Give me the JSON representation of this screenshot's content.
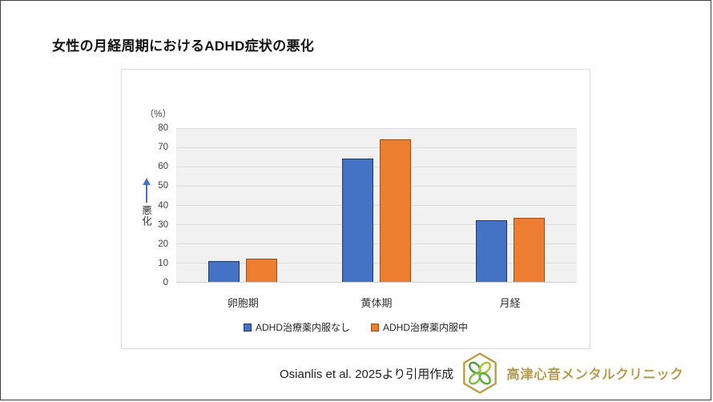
{
  "page": {
    "title": "女性の月経周期におけるADHD症状の悪化"
  },
  "colors": {
    "frame_border": "#3f3f3f",
    "panel_border": "#d9d9d9",
    "plot_background": "#f1f1f2",
    "gridline": "#dcdcdc",
    "axis_text": "#3f3f3f",
    "arrow_blue": "#4472c4",
    "clinic_gold": "#b79d4f",
    "logo_hexagon_gold": "#b89a3c",
    "logo_leaf_greens": [
      "#4e9b47",
      "#a8c83c",
      "#7fbf45",
      "#5fad3f"
    ]
  },
  "icons": {
    "worsening_arrow": "up-arrow-icon",
    "clinic_logo": "clover-hexagon-icon"
  },
  "chart_data": {
    "type": "bar",
    "title": "女性の月経周期におけるADHD症状の悪化",
    "unit_label": "（%）",
    "y_axis_annotation": "悪化",
    "categories": [
      "卵胞期",
      "黄体期",
      "月経"
    ],
    "series": [
      {
        "name": "ADHD治療薬内服なし",
        "values": [
          11,
          64,
          32
        ],
        "fill": "#4472c4",
        "border": "#1f3864"
      },
      {
        "name": "ADHD治療薬内服中",
        "values": [
          12,
          74,
          33.5
        ],
        "fill": "#ed7d31",
        "border": "#9c4e14"
      }
    ],
    "ylim": [
      0,
      80
    ],
    "y_ticks": [
      0,
      10,
      20,
      30,
      40,
      50,
      60,
      70,
      80
    ],
    "grid": true,
    "legend_position": "bottom"
  },
  "footer": {
    "citation": "Osianlis et al. 2025より引用作成",
    "clinic_name": "高津心音メンタルクリニック"
  }
}
